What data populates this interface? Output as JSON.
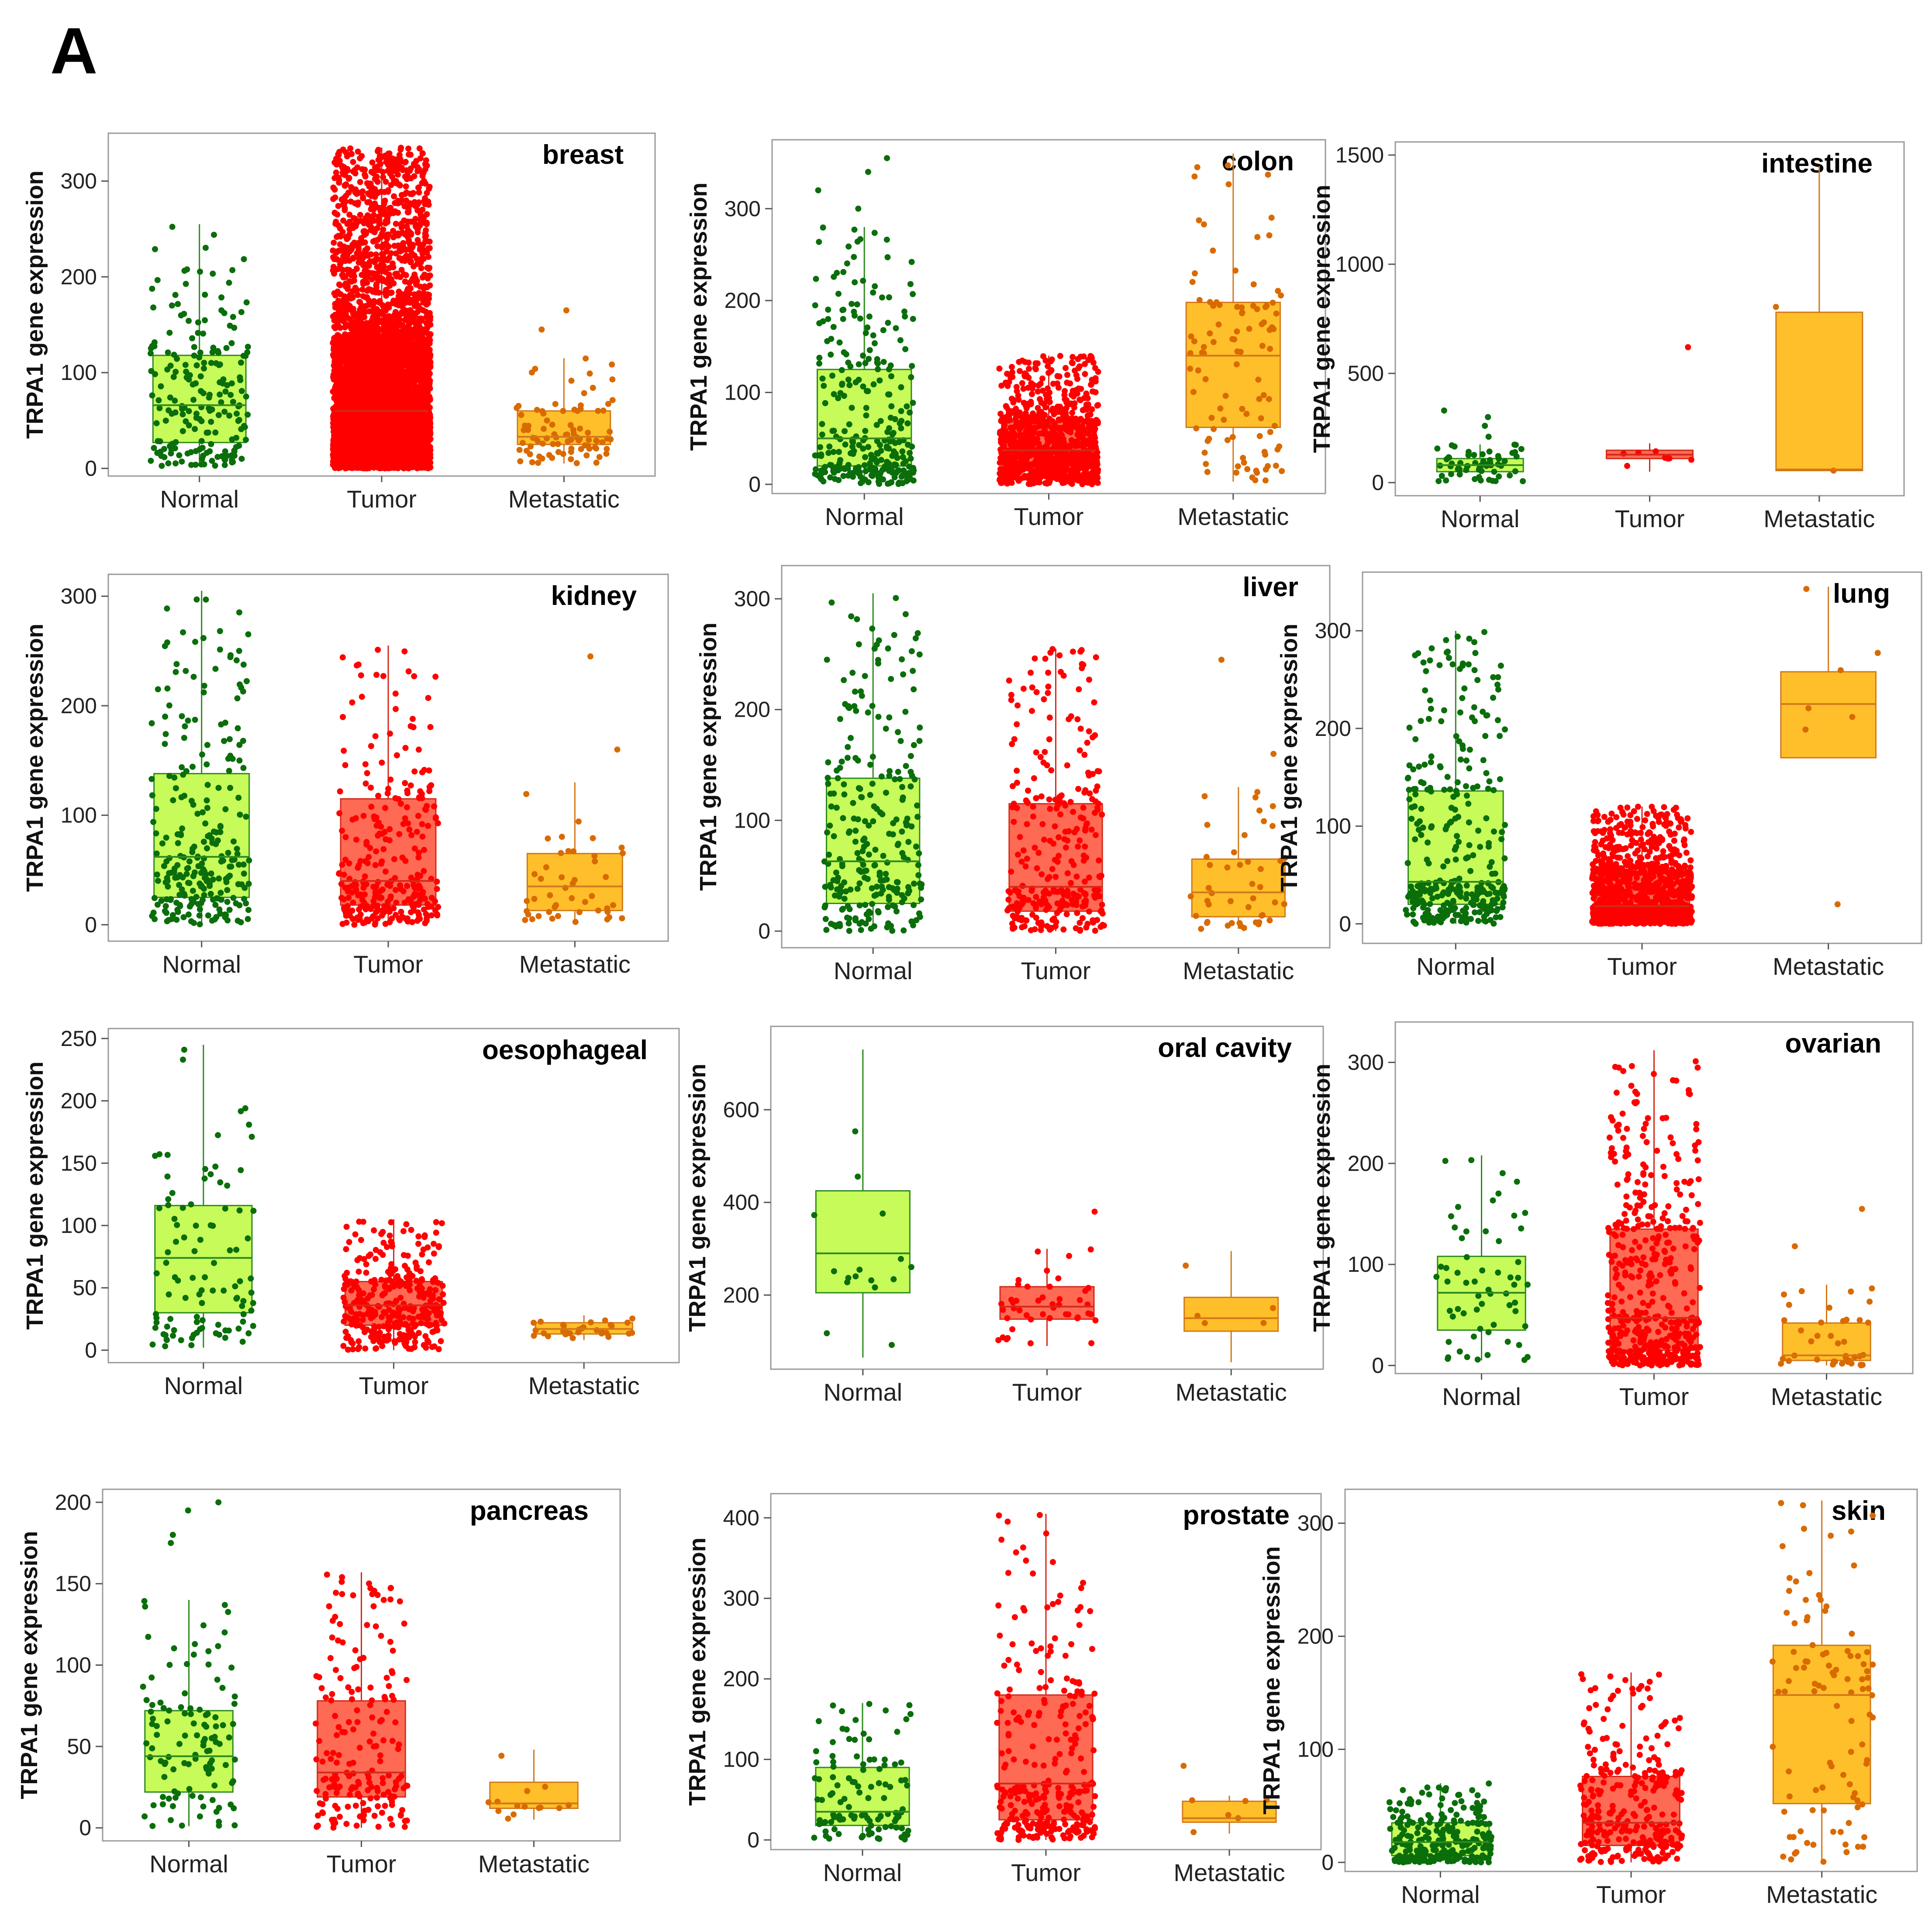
{
  "figure": {
    "panel_label": "A"
  },
  "colors": {
    "normal_fill": "#c6fb5a",
    "normal_stroke": "#2e8b1e",
    "normal_point": "#0a6e0a",
    "tumor_fill": "#ff6a55",
    "tumor_stroke": "#d42a1a",
    "tumor_point": "#ff0000",
    "metastatic_fill": "#ffbf2a",
    "metastatic_stroke": "#d2781a",
    "metastatic_point": "#d96a00"
  },
  "chart_data": [
    {
      "type": "box",
      "title": "breast",
      "categories": [
        "Normal",
        "Tumor",
        "Metastatic"
      ],
      "ylabel": "TRPA1 gene expression",
      "xlabel": "",
      "ylim": [
        -8,
        350
      ],
      "yticks": [
        0,
        100,
        200,
        300
      ],
      "series": [
        {
          "name": "Normal",
          "q1": 27,
          "median": 66,
          "q3": 118,
          "whisker_low": 2,
          "whisker_high": 255,
          "n_points": 200,
          "outliers": []
        },
        {
          "name": "Tumor",
          "q1": 25,
          "median": 60,
          "q3": 130,
          "whisker_low": 0,
          "whisker_high": 335,
          "n_points": 5000,
          "outliers": []
        },
        {
          "name": "Metastatic",
          "q1": 25,
          "median": 33,
          "q3": 60,
          "whisker_low": 5,
          "whisker_high": 115,
          "n_points": 90,
          "outliers": [
            145,
            165
          ]
        }
      ]
    },
    {
      "type": "box",
      "title": "colon",
      "categories": [
        "Normal",
        "Tumor",
        "Metastatic"
      ],
      "ylabel": "TRPA1 gene expression",
      "xlabel": "",
      "ylim": [
        -10,
        375
      ],
      "yticks": [
        0,
        100,
        200,
        300
      ],
      "series": [
        {
          "name": "Normal",
          "q1": 20,
          "median": 50,
          "q3": 125,
          "whisker_low": 0,
          "whisker_high": 280,
          "n_points": 300,
          "outliers": [
            300,
            320,
            340,
            355
          ]
        },
        {
          "name": "Tumor",
          "q1": 17,
          "median": 37,
          "q3": 68,
          "whisker_low": 0,
          "whisker_high": 140,
          "n_points": 900,
          "outliers": []
        },
        {
          "name": "Metastatic",
          "q1": 62,
          "median": 140,
          "q3": 198,
          "whisker_low": 3,
          "whisker_high": 360,
          "n_points": 100,
          "outliers": []
        }
      ]
    },
    {
      "type": "box",
      "title": "intestine",
      "categories": [
        "Normal",
        "Tumor",
        "Metastatic"
      ],
      "ylabel": "TRPA1 gene expression",
      "xlabel": "",
      "ylim": [
        -60,
        1560
      ],
      "yticks": [
        0,
        500,
        1000,
        1500
      ],
      "series": [
        {
          "name": "Normal",
          "q1": 50,
          "median": 80,
          "q3": 110,
          "whisker_low": 5,
          "whisker_high": 175,
          "n_points": 60,
          "outliers": [
            210,
            260,
            300,
            330
          ]
        },
        {
          "name": "Tumor",
          "q1": 110,
          "median": 128,
          "q3": 148,
          "whisker_low": 50,
          "whisker_high": 180,
          "n_points": 8,
          "outliers": [
            620
          ]
        },
        {
          "name": "Metastatic",
          "q1": 55,
          "median": 60,
          "q3": 780,
          "whisker_low": 55,
          "whisker_high": 1450,
          "n_points": 2,
          "outliers": []
        }
      ]
    },
    {
      "type": "box",
      "title": "kidney",
      "categories": [
        "Normal",
        "Tumor",
        "Metastatic"
      ],
      "ylabel": "TRPA1 gene expression",
      "xlabel": "",
      "ylim": [
        -15,
        320
      ],
      "yticks": [
        0,
        100,
        200,
        300
      ],
      "series": [
        {
          "name": "Normal",
          "q1": 25,
          "median": 62,
          "q3": 138,
          "whisker_low": 0,
          "whisker_high": 305,
          "n_points": 260,
          "outliers": []
        },
        {
          "name": "Tumor",
          "q1": 18,
          "median": 40,
          "q3": 115,
          "whisker_low": 0,
          "whisker_high": 255,
          "n_points": 300,
          "outliers": []
        },
        {
          "name": "Metastatic",
          "q1": 13,
          "median": 35,
          "q3": 65,
          "whisker_low": 2,
          "whisker_high": 130,
          "n_points": 45,
          "outliers": [
            160,
            245
          ]
        }
      ]
    },
    {
      "type": "box",
      "title": "liver",
      "categories": [
        "Normal",
        "Tumor",
        "Metastatic"
      ],
      "ylabel": "TRPA1 gene expression",
      "xlabel": "",
      "ylim": [
        -15,
        330
      ],
      "yticks": [
        0,
        100,
        200,
        300
      ],
      "series": [
        {
          "name": "Normal",
          "q1": 25,
          "median": 63,
          "q3": 138,
          "whisker_low": 0,
          "whisker_high": 305,
          "n_points": 260,
          "outliers": []
        },
        {
          "name": "Tumor",
          "q1": 18,
          "median": 40,
          "q3": 115,
          "whisker_low": 0,
          "whisker_high": 255,
          "n_points": 300,
          "outliers": []
        },
        {
          "name": "Metastatic",
          "q1": 13,
          "median": 35,
          "q3": 65,
          "whisker_low": 2,
          "whisker_high": 130,
          "n_points": 45,
          "outliers": [
            160,
            245
          ]
        }
      ]
    },
    {
      "type": "box",
      "title": "lung",
      "categories": [
        "Normal",
        "Tumor",
        "Metastatic"
      ],
      "ylabel": "TRPA1 gene expression",
      "xlabel": "",
      "ylim": [
        -20,
        360
      ],
      "yticks": [
        0,
        100,
        200,
        300
      ],
      "series": [
        {
          "name": "Normal",
          "q1": 20,
          "median": 43,
          "q3": 136,
          "whisker_low": 0,
          "whisker_high": 300,
          "n_points": 330,
          "outliers": []
        },
        {
          "name": "Tumor",
          "q1": 7,
          "median": 18,
          "q3": 52,
          "whisker_low": 0,
          "whisker_high": 120,
          "n_points": 1100,
          "outliers": []
        },
        {
          "name": "Metastatic",
          "q1": 170,
          "median": 225,
          "q3": 258,
          "whisker_low": 170,
          "whisker_high": 345,
          "n_points": 6,
          "outliers": [
            20
          ]
        }
      ]
    },
    {
      "type": "box",
      "title": "oesophageal",
      "categories": [
        "Normal",
        "Tumor",
        "Metastatic"
      ],
      "ylabel": "TRPA1 gene expression",
      "xlabel": "",
      "ylim": [
        -10,
        258
      ],
      "yticks": [
        0,
        50,
        100,
        150,
        200,
        250
      ],
      "series": [
        {
          "name": "Normal",
          "q1": 30,
          "median": 74,
          "q3": 116,
          "whisker_low": 2,
          "whisker_high": 245,
          "n_points": 100,
          "outliers": []
        },
        {
          "name": "Tumor",
          "q1": 20,
          "median": 36,
          "q3": 55,
          "whisker_low": 0,
          "whisker_high": 105,
          "n_points": 350,
          "outliers": []
        },
        {
          "name": "Metastatic",
          "q1": 13,
          "median": 17,
          "q3": 22,
          "whisker_low": 8,
          "whisker_high": 28,
          "n_points": 30,
          "outliers": []
        }
      ]
    },
    {
      "type": "box",
      "title": "oral cavity",
      "categories": [
        "Normal",
        "Tumor",
        "Metastatic"
      ],
      "ylabel": "TRPA1 gene expression",
      "xlabel": "",
      "ylim": [
        40,
        780
      ],
      "yticks": [
        200,
        400,
        600
      ],
      "series": [
        {
          "name": "Normal",
          "q1": 205,
          "median": 290,
          "q3": 425,
          "whisker_low": 65,
          "whisker_high": 730,
          "n_points": 16,
          "outliers": []
        },
        {
          "name": "Tumor",
          "q1": 148,
          "median": 175,
          "q3": 218,
          "whisker_low": 90,
          "whisker_high": 300,
          "n_points": 45,
          "outliers": [
            380
          ]
        },
        {
          "name": "Metastatic",
          "q1": 122,
          "median": 150,
          "q3": 195,
          "whisker_low": 55,
          "whisker_high": 295,
          "n_points": 5,
          "outliers": []
        }
      ]
    },
    {
      "type": "box",
      "title": "ovarian",
      "categories": [
        "Normal",
        "Tumor",
        "Metastatic"
      ],
      "ylabel": "TRPA1 gene expression",
      "xlabel": "",
      "ylim": [
        -8,
        340
      ],
      "yticks": [
        0,
        100,
        200,
        300
      ],
      "series": [
        {
          "name": "Normal",
          "q1": 35,
          "median": 72,
          "q3": 108,
          "whisker_low": 5,
          "whisker_high": 208,
          "n_points": 60,
          "outliers": []
        },
        {
          "name": "Tumor",
          "q1": 15,
          "median": 47,
          "q3": 135,
          "whisker_low": 0,
          "whisker_high": 312,
          "n_points": 500,
          "outliers": []
        },
        {
          "name": "Metastatic",
          "q1": 5,
          "median": 10,
          "q3": 42,
          "whisker_low": 0,
          "whisker_high": 80,
          "n_points": 40,
          "outliers": [
            118,
            155
          ]
        }
      ]
    },
    {
      "type": "box",
      "title": "pancreas",
      "categories": [
        "Normal",
        "Tumor",
        "Metastatic"
      ],
      "ylabel": "TRPA1 gene expression",
      "xlabel": "",
      "ylim": [
        -8,
        208
      ],
      "yticks": [
        0,
        50,
        100,
        150,
        200
      ],
      "series": [
        {
          "name": "Normal",
          "q1": 22,
          "median": 44,
          "q3": 72,
          "whisker_low": 1,
          "whisker_high": 140,
          "n_points": 110,
          "outliers": [
            175,
            180,
            195,
            200
          ]
        },
        {
          "name": "Tumor",
          "q1": 19,
          "median": 34,
          "q3": 78,
          "whisker_low": 0,
          "whisker_high": 157,
          "n_points": 190,
          "outliers": []
        },
        {
          "name": "Metastatic",
          "q1": 12,
          "median": 15,
          "q3": 28,
          "whisker_low": 5,
          "whisker_high": 48,
          "n_points": 14,
          "outliers": []
        }
      ]
    },
    {
      "type": "box",
      "title": "prostate",
      "categories": [
        "Normal",
        "Tumor",
        "Metastatic"
      ],
      "ylabel": "TRPA1 gene expression",
      "xlabel": "",
      "ylim": [
        -12,
        430
      ],
      "yticks": [
        0,
        100,
        200,
        300,
        400
      ],
      "series": [
        {
          "name": "Normal",
          "q1": 18,
          "median": 35,
          "q3": 90,
          "whisker_low": 0,
          "whisker_high": 170,
          "n_points": 110,
          "outliers": []
        },
        {
          "name": "Tumor",
          "q1": 25,
          "median": 70,
          "q3": 180,
          "whisker_low": 0,
          "whisker_high": 405,
          "n_points": 300,
          "outliers": []
        },
        {
          "name": "Metastatic",
          "q1": 22,
          "median": 27,
          "q3": 48,
          "whisker_low": 8,
          "whisker_high": 55,
          "n_points": 6,
          "outliers": [
            92
          ]
        }
      ]
    },
    {
      "type": "box",
      "title": "skin",
      "categories": [
        "Normal",
        "Tumor",
        "Metastatic"
      ],
      "ylabel": "TRPA1 gene expression",
      "xlabel": "",
      "ylim": [
        -8,
        330
      ],
      "yticks": [
        0,
        100,
        200,
        300
      ],
      "series": [
        {
          "name": "Normal",
          "q1": 6,
          "median": 18,
          "q3": 35,
          "whisker_low": 0,
          "whisker_high": 70,
          "n_points": 250,
          "outliers": []
        },
        {
          "name": "Tumor",
          "q1": 15,
          "median": 35,
          "q3": 76,
          "whisker_low": 0,
          "whisker_high": 168,
          "n_points": 300,
          "outliers": []
        },
        {
          "name": "Metastatic",
          "q1": 52,
          "median": 148,
          "q3": 192,
          "whisker_low": 0,
          "whisker_high": 320,
          "n_points": 100,
          "outliers": []
        }
      ]
    }
  ]
}
